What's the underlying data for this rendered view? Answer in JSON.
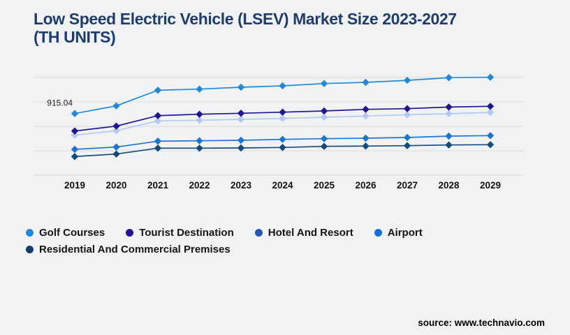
{
  "header": {
    "title_line1": "Low Speed Electric Vehicle (LSEV) Market Size 2023-2027",
    "title_line2": "(TH UNITS)",
    "title_color": "#1e3c6e"
  },
  "chart_data": {
    "type": "line",
    "title": "Low Speed Electric Vehicle (LSEV) Market Size 2023-2027 (TH UNITS)",
    "unit": "TH UNITS",
    "categories": [
      "2019",
      "2020",
      "2021",
      "2022",
      "2023",
      "2024",
      "2025",
      "2026",
      "2027",
      "2028",
      "2029"
    ],
    "series": [
      {
        "name": "Golf Courses",
        "color": "#2289d6",
        "line_color": "#2289d6",
        "marker": "diamond",
        "values": [
          915.04,
          1029,
          1261,
          1278,
          1306,
          1327,
          1361,
          1378,
          1409,
          1448,
          1454
        ]
      },
      {
        "name": "Tourist Destination",
        "color": "#1f1690",
        "line_color": "#1f1690",
        "marker": "diamond",
        "values": [
          656,
          729,
          884,
          905,
          919,
          936,
          953,
          977,
          988,
          1012,
          1023
        ]
      },
      {
        "name": "Hotel And Resort",
        "color": "#2457b8",
        "line_color": "#b5c9f0",
        "marker": "diamond",
        "values": [
          594,
          660,
          805,
          816,
          829,
          843,
          860,
          878,
          898,
          912,
          933
        ]
      },
      {
        "name": "Airport",
        "color": "#166fd4",
        "line_color": "#1c74d6",
        "marker": "diamond",
        "values": [
          383,
          418,
          505,
          511,
          518,
          532,
          542,
          549,
          560,
          580,
          588
        ]
      },
      {
        "name": "Residential And Commercial Premises",
        "color": "#123f6a",
        "line_color": "#154b78",
        "marker": "diamond",
        "values": [
          277,
          314,
          401,
          401,
          404,
          411,
          428,
          432,
          438,
          449,
          453
        ]
      }
    ],
    "annotation": {
      "text": "915.04",
      "series": "Golf Courses",
      "category": "2019",
      "value": 915.04
    },
    "ylim": [
      0,
      1451
    ],
    "gridline_values": [
      0,
      363,
      725,
      1088,
      1451
    ],
    "grid": "horizontal",
    "legend_position": "bottom",
    "colors": {
      "gridline": "#d8d9dc",
      "axis_label": "#111111",
      "annotation_text": "#222222",
      "background": "#f1f2f4"
    }
  },
  "footer": {
    "source": "source: www.technavio.com"
  }
}
